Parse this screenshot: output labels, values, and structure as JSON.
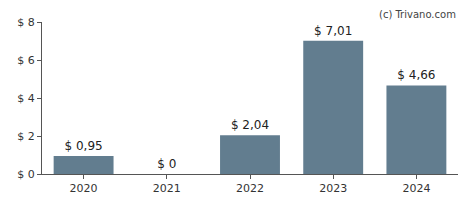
{
  "chart_data": {
    "type": "bar",
    "categories": [
      "2020",
      "2021",
      "2022",
      "2023",
      "2024"
    ],
    "values": [
      0.95,
      0,
      2.04,
      7.01,
      4.66
    ],
    "value_labels": [
      "$ 0,95",
      "$ 0",
      "$ 2,04",
      "$ 7,01",
      "$ 4,66"
    ],
    "data_labels": true,
    "color": "#627d8f",
    "ylim": [
      0,
      8
    ],
    "yticks": [
      {
        "value": 0,
        "label": "$ 0"
      },
      {
        "value": 2,
        "label": "$ 2"
      },
      {
        "value": 4,
        "label": "$ 4"
      },
      {
        "value": 6,
        "label": "$ 6"
      },
      {
        "value": 8,
        "label": "$ 8"
      }
    ],
    "grid": false,
    "annotations": [
      "(c) Trivano.com"
    ]
  }
}
